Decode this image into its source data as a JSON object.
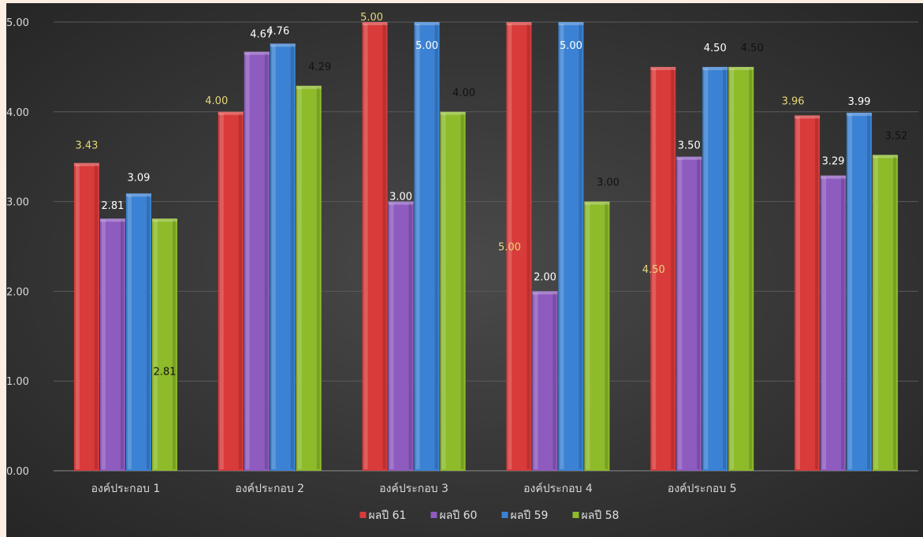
{
  "chart_data": {
    "type": "bar",
    "title": "",
    "xlabel": "",
    "ylabel": "",
    "ylim": [
      0,
      5
    ],
    "yticks": [
      "0.00",
      "1.00",
      "2.00",
      "3.00",
      "4.00",
      "5.00"
    ],
    "grid": true,
    "legend_position": "bottom",
    "categories": [
      "องค์ประกอบ 1",
      "องค์ประกอบ 2",
      "องค์ประกอบ 3",
      "องค์ประกอบ 4",
      "องค์ประกอบ 5",
      ""
    ],
    "series": [
      {
        "name": "ผลปี 61",
        "color": "#d93a3a",
        "values": [
          3.43,
          4.0,
          5.0,
          5.0,
          4.5,
          3.96
        ],
        "labels": [
          "3.43",
          "4.00",
          "5.00",
          "5.00",
          "4.50",
          "3.96"
        ]
      },
      {
        "name": "ผลปี 60",
        "color": "#8e5bbf",
        "values": [
          2.81,
          4.67,
          3.0,
          2.0,
          3.5,
          3.29
        ],
        "labels": [
          "2.81",
          "4.67",
          "3.00",
          "2.00",
          "3.50",
          "3.29"
        ]
      },
      {
        "name": "ผลปี 59",
        "color": "#3b82d4",
        "values": [
          3.09,
          4.76,
          5.0,
          5.0,
          4.5,
          3.99
        ],
        "labels": [
          "3.09",
          "4.76",
          "5.00",
          "5.00",
          "4.50",
          "3.99"
        ]
      },
      {
        "name": "ผลปี 58",
        "color": "#8dbb2a",
        "values": [
          2.81,
          4.29,
          4.0,
          3.0,
          4.5,
          3.52
        ],
        "labels": [
          "2.81",
          "4.29",
          "4.00",
          "3.00",
          "4.50",
          "3.52"
        ]
      }
    ]
  }
}
